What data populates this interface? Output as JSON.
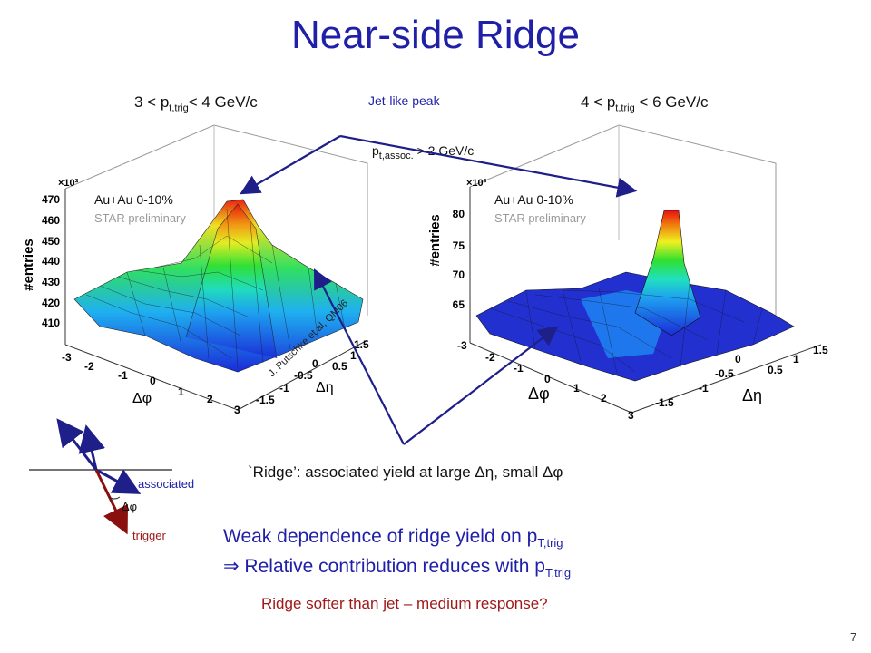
{
  "title": "Near-side Ridge",
  "left_panel": {
    "header_main": "3 < p",
    "header_sub": "t,trig",
    "header_tail": "< 4 GeV/c",
    "system": "Au+Au 0-10%",
    "collab": "STAR preliminary",
    "zlabel": "#entries",
    "zscale": "×10³",
    "zticks": [
      "470",
      "460",
      "450",
      "440",
      "430",
      "420",
      "410"
    ],
    "phiticks": [
      "-3",
      "-2",
      "-1",
      "0",
      "1",
      "2",
      "3"
    ],
    "etaticks": [
      "-1.5",
      "-1",
      "-0.5",
      "0",
      "0.5",
      "1",
      "1.5"
    ],
    "phi_label": "Δφ",
    "eta_label": "Δη",
    "credit": "J. Putschke et al, QM06"
  },
  "right_panel": {
    "header_main": "4 < p",
    "header_sub": "t,trig",
    "header_tail": " < 6 GeV/c",
    "system": "Au+Au 0-10%",
    "collab": "STAR preliminary",
    "zlabel": "#entries",
    "zscale": "×10³",
    "zticks": [
      "80",
      "75",
      "70",
      "65"
    ],
    "phiticks": [
      "-3",
      "-2",
      "-1",
      "0",
      "1",
      "2",
      "3"
    ],
    "etaticks": [
      "-1.5",
      "-1",
      "-0.5",
      "0",
      "0.5",
      "1",
      "1.5"
    ],
    "phi_label": "Δφ",
    "eta_label": "Δη"
  },
  "jet_label": "Jet-like peak",
  "assoc_cut_main": "p",
  "assoc_cut_sub": "t,assoc.",
  "assoc_cut_tail": " > 2 GeV/c",
  "ridge_text": "`Ridge’: associated yield at large Δη, small Δφ",
  "weak_line1_main": "Weak dependence of ridge yield on p",
  "weak_line1_sub": "T,trig",
  "weak_line2_main": "⇒ Relative contribution reduces with p",
  "weak_line2_sub": "T,trig",
  "softer_text": "Ridge softer than jet – medium response?",
  "diagram": {
    "associated": "associated",
    "trigger": "trigger",
    "angle": "Δφ"
  },
  "page_number": "7",
  "colors": {
    "title": "#1f1fa8",
    "accent_red": "#a01818",
    "arrow": "#1f1f8a"
  }
}
